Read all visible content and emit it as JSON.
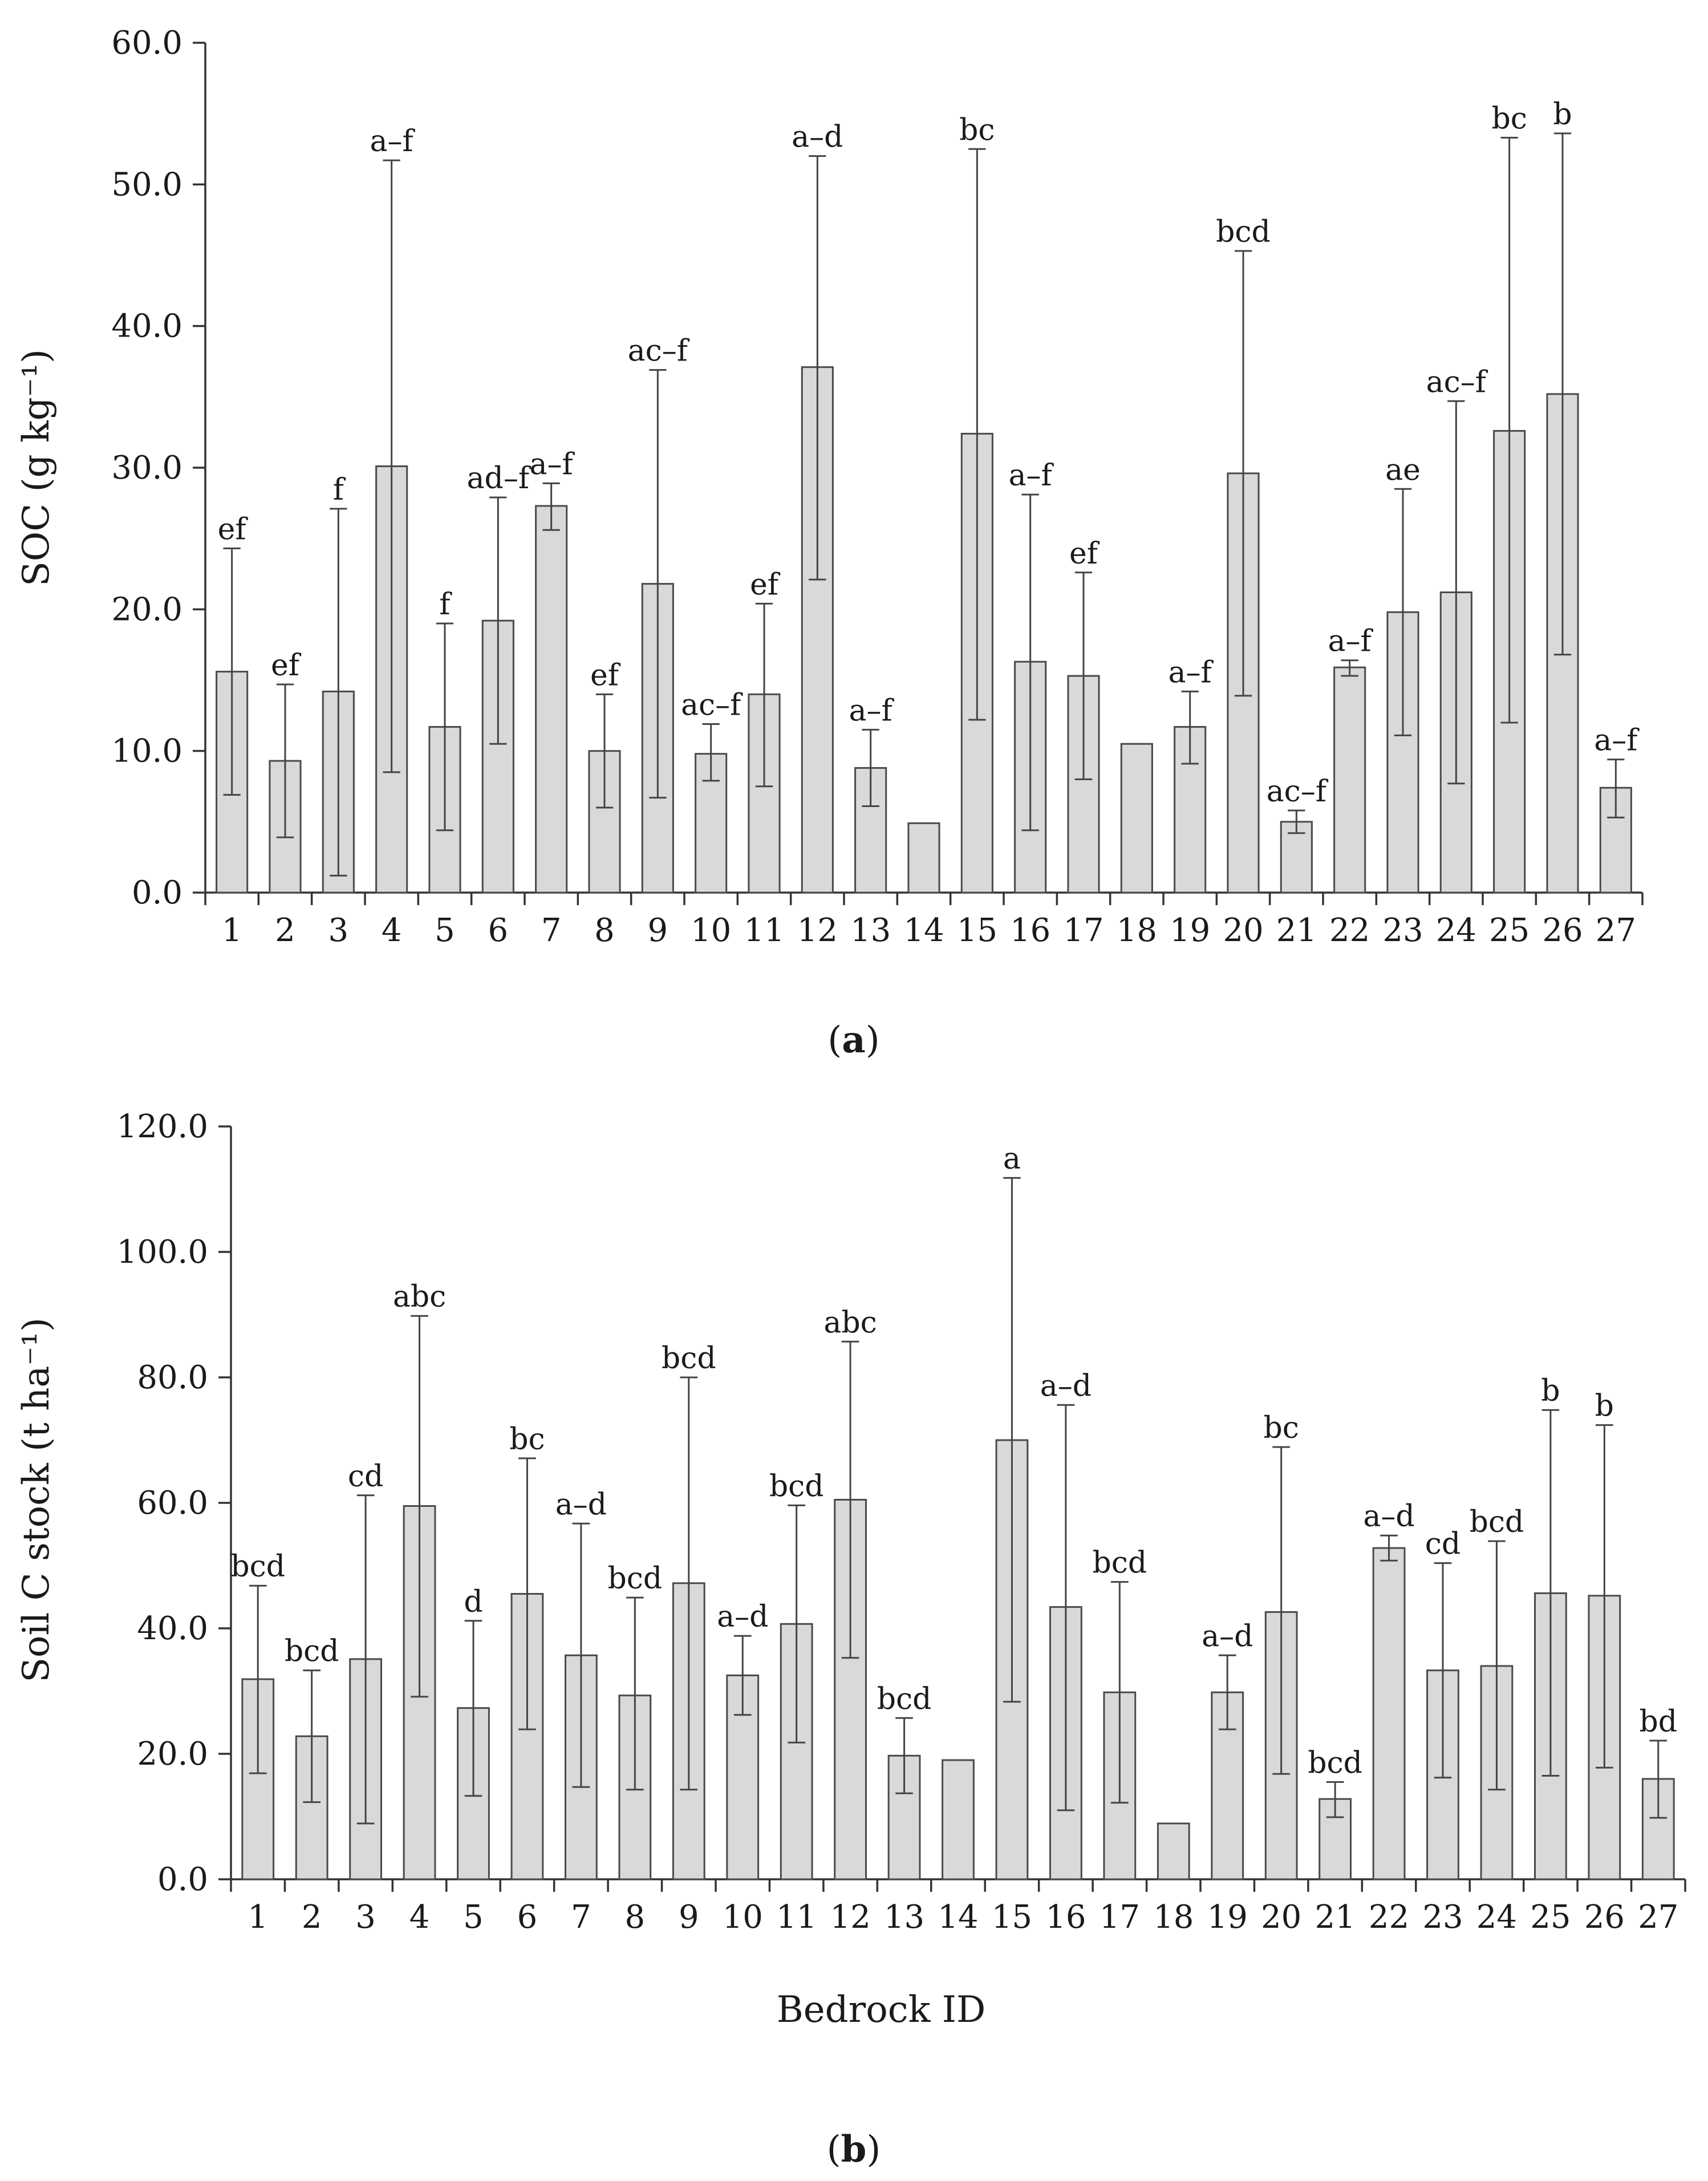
{
  "chart_data": [
    {
      "type": "bar",
      "panel_label": "a",
      "title": "",
      "xlabel": "",
      "ylabel": "SOC (g kg⁻¹)",
      "ylim": [
        0,
        60
      ],
      "yticks": [
        "0.0",
        "10.0",
        "20.0",
        "30.0",
        "40.0",
        "50.0",
        "60.0"
      ],
      "categories": [
        "1",
        "2",
        "3",
        "4",
        "5",
        "6",
        "7",
        "8",
        "9",
        "10",
        "11",
        "12",
        "13",
        "14",
        "15",
        "16",
        "17",
        "18",
        "19",
        "20",
        "21",
        "22",
        "23",
        "24",
        "25",
        "26",
        "27"
      ],
      "values": [
        15.6,
        9.3,
        14.2,
        30.1,
        11.7,
        19.2,
        27.3,
        10.0,
        21.8,
        9.8,
        14.0,
        37.1,
        8.8,
        4.9,
        32.4,
        16.3,
        15.3,
        10.5,
        11.7,
        29.6,
        5.0,
        15.9,
        19.8,
        21.2,
        32.6,
        35.2,
        7.4
      ],
      "err_low": [
        6.9,
        3.9,
        1.2,
        8.5,
        4.4,
        10.5,
        25.6,
        6.0,
        6.7,
        7.9,
        7.5,
        22.1,
        6.1,
        null,
        12.2,
        4.4,
        8.0,
        null,
        9.1,
        13.9,
        4.2,
        15.3,
        11.1,
        7.7,
        12.0,
        16.8,
        5.3
      ],
      "err_high": [
        24.3,
        14.7,
        27.1,
        51.7,
        19.0,
        27.9,
        28.9,
        14.0,
        36.9,
        11.9,
        20.4,
        52.0,
        11.5,
        null,
        52.5,
        28.1,
        22.6,
        null,
        14.2,
        45.3,
        5.8,
        16.4,
        28.5,
        34.7,
        53.3,
        53.6,
        9.4
      ],
      "letters": [
        "ef",
        "ef",
        "f",
        "a–f",
        "f",
        "ad–f",
        "a–f",
        "ef",
        "ac–f",
        "ac–f",
        "ef",
        "a–d",
        "a–f",
        "",
        "bc",
        "a–f",
        "ef",
        "",
        "a–f",
        "bcd",
        "ac–f",
        "a–f",
        "ae",
        "ac–f",
        "bc",
        "b",
        "a–f"
      ]
    },
    {
      "type": "bar",
      "panel_label": "b",
      "title": "",
      "xlabel": "Bedrock ID",
      "ylabel": "Soil C stock (t ha⁻¹)",
      "ylim": [
        0,
        120
      ],
      "yticks": [
        "0.0",
        "20.0",
        "40.0",
        "60.0",
        "80.0",
        "100.0",
        "120.0"
      ],
      "categories": [
        "1",
        "2",
        "3",
        "4",
        "5",
        "6",
        "7",
        "8",
        "9",
        "10",
        "11",
        "12",
        "13",
        "14",
        "15",
        "16",
        "17",
        "18",
        "19",
        "20",
        "21",
        "22",
        "23",
        "24",
        "25",
        "26",
        "27"
      ],
      "values": [
        31.9,
        22.8,
        35.1,
        59.5,
        27.3,
        45.5,
        35.7,
        29.3,
        47.2,
        32.5,
        40.7,
        60.5,
        19.7,
        19.0,
        70.0,
        43.4,
        29.8,
        8.9,
        29.8,
        42.6,
        12.8,
        52.8,
        33.3,
        34.0,
        45.6,
        45.2,
        16.0
      ],
      "err_low": [
        16.9,
        12.3,
        8.9,
        29.1,
        13.3,
        23.9,
        14.7,
        14.3,
        14.3,
        26.2,
        21.8,
        35.3,
        13.7,
        null,
        28.3,
        11.0,
        12.2,
        null,
        23.9,
        16.8,
        9.9,
        50.8,
        16.2,
        14.3,
        16.5,
        17.8,
        9.8
      ],
      "err_high": [
        46.8,
        33.3,
        61.2,
        89.8,
        41.2,
        67.1,
        56.7,
        44.9,
        80.0,
        38.8,
        59.6,
        85.7,
        25.7,
        null,
        111.8,
        75.6,
        47.4,
        null,
        35.7,
        68.9,
        15.5,
        54.8,
        50.4,
        53.9,
        74.8,
        72.4,
        22.1
      ],
      "letters": [
        "bcd",
        "bcd",
        "cd",
        "abc",
        "d",
        "bc",
        "a–d",
        "bcd",
        "bcd",
        "a–d",
        "bcd",
        "abc",
        "bcd",
        "",
        "a",
        "a–d",
        "bcd",
        "",
        "a–d",
        "bc",
        "bcd",
        "a–d",
        "cd",
        "bcd",
        "b",
        "b",
        "bd"
      ]
    }
  ]
}
